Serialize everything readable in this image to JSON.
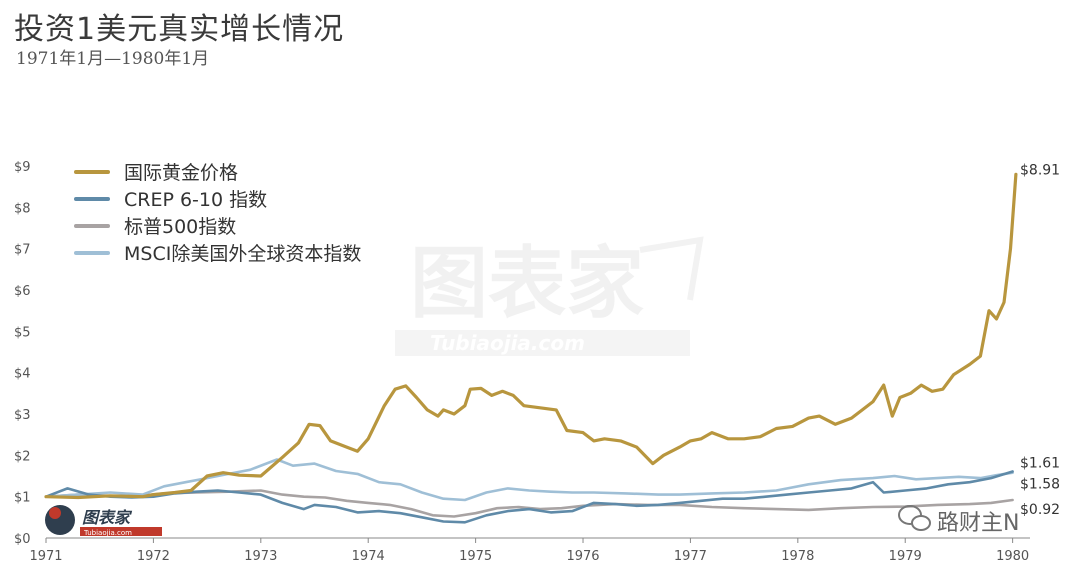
{
  "header": {
    "title": "投资1美元真实增长情况",
    "subtitle": "1971年1月—1980年1月"
  },
  "watermark": {
    "main_text": "图表家",
    "sub_text": "Tubiaojia.com",
    "logo_text": "图表家",
    "logo_sub": "Tubiaojia.com",
    "wechat_text": "路财主N",
    "wechat_icon": "wechat-icon"
  },
  "chart_data": {
    "type": "line",
    "title": "投资1美元真实增长情况",
    "subtitle": "1971年1月—1980年1月",
    "x_ticks": [
      "1971",
      "1972",
      "1973",
      "1974",
      "1975",
      "1976",
      "1977",
      "1978",
      "1979",
      "1980"
    ],
    "y_ticks": [
      "$0",
      "$1",
      "$2",
      "$3",
      "$4",
      "$5",
      "$6",
      "$7",
      "$8",
      "$9"
    ],
    "xlim": [
      1971.0,
      1980.05
    ],
    "ylim": [
      0,
      9
    ],
    "grid": false,
    "legend_position": "top-left",
    "series": [
      {
        "name": "国际黄金价格",
        "color": "#b8963e",
        "end_label": "$8.91",
        "points": [
          [
            1971.0,
            1.0
          ],
          [
            1971.3,
            0.98
          ],
          [
            1971.6,
            1.02
          ],
          [
            1971.9,
            1.0
          ],
          [
            1972.0,
            1.05
          ],
          [
            1972.2,
            1.1
          ],
          [
            1972.35,
            1.15
          ],
          [
            1972.5,
            1.5
          ],
          [
            1972.65,
            1.58
          ],
          [
            1972.8,
            1.52
          ],
          [
            1973.0,
            1.5
          ],
          [
            1973.2,
            1.95
          ],
          [
            1973.35,
            2.3
          ],
          [
            1973.45,
            2.75
          ],
          [
            1973.55,
            2.72
          ],
          [
            1973.65,
            2.35
          ],
          [
            1973.8,
            2.2
          ],
          [
            1973.9,
            2.1
          ],
          [
            1974.0,
            2.4
          ],
          [
            1974.15,
            3.2
          ],
          [
            1974.25,
            3.6
          ],
          [
            1974.35,
            3.68
          ],
          [
            1974.45,
            3.4
          ],
          [
            1974.55,
            3.1
          ],
          [
            1974.65,
            2.95
          ],
          [
            1974.7,
            3.1
          ],
          [
            1974.8,
            3.0
          ],
          [
            1974.9,
            3.2
          ],
          [
            1974.95,
            3.6
          ],
          [
            1975.05,
            3.62
          ],
          [
            1975.15,
            3.45
          ],
          [
            1975.25,
            3.55
          ],
          [
            1975.35,
            3.45
          ],
          [
            1975.45,
            3.2
          ],
          [
            1975.6,
            3.15
          ],
          [
            1975.75,
            3.1
          ],
          [
            1975.85,
            2.6
          ],
          [
            1976.0,
            2.55
          ],
          [
            1976.1,
            2.35
          ],
          [
            1976.2,
            2.4
          ],
          [
            1976.35,
            2.35
          ],
          [
            1976.5,
            2.2
          ],
          [
            1976.65,
            1.8
          ],
          [
            1976.75,
            2.0
          ],
          [
            1976.9,
            2.2
          ],
          [
            1977.0,
            2.35
          ],
          [
            1977.1,
            2.4
          ],
          [
            1977.2,
            2.55
          ],
          [
            1977.35,
            2.4
          ],
          [
            1977.5,
            2.4
          ],
          [
            1977.65,
            2.45
          ],
          [
            1977.8,
            2.65
          ],
          [
            1977.95,
            2.7
          ],
          [
            1978.1,
            2.9
          ],
          [
            1978.2,
            2.95
          ],
          [
            1978.35,
            2.75
          ],
          [
            1978.5,
            2.9
          ],
          [
            1978.6,
            3.1
          ],
          [
            1978.7,
            3.3
          ],
          [
            1978.8,
            3.7
          ],
          [
            1978.88,
            2.95
          ],
          [
            1978.95,
            3.4
          ],
          [
            1979.05,
            3.5
          ],
          [
            1979.15,
            3.7
          ],
          [
            1979.25,
            3.55
          ],
          [
            1979.35,
            3.6
          ],
          [
            1979.45,
            3.95
          ],
          [
            1979.6,
            4.2
          ],
          [
            1979.7,
            4.4
          ],
          [
            1979.78,
            5.5
          ],
          [
            1979.85,
            5.3
          ],
          [
            1979.92,
            5.7
          ],
          [
            1979.98,
            7.0
          ],
          [
            1980.03,
            8.8
          ]
        ]
      },
      {
        "name": "CREP 6-10 指数",
        "color": "#5f8aa8",
        "end_label": "$1.61",
        "points": [
          [
            1971.0,
            1.0
          ],
          [
            1971.2,
            1.2
          ],
          [
            1971.4,
            1.05
          ],
          [
            1971.6,
            1.0
          ],
          [
            1971.8,
            0.98
          ],
          [
            1972.0,
            1.0
          ],
          [
            1972.2,
            1.08
          ],
          [
            1972.4,
            1.12
          ],
          [
            1972.6,
            1.15
          ],
          [
            1972.8,
            1.1
          ],
          [
            1973.0,
            1.05
          ],
          [
            1973.2,
            0.85
          ],
          [
            1973.4,
            0.7
          ],
          [
            1973.5,
            0.8
          ],
          [
            1973.7,
            0.75
          ],
          [
            1973.9,
            0.62
          ],
          [
            1974.1,
            0.65
          ],
          [
            1974.3,
            0.6
          ],
          [
            1974.5,
            0.5
          ],
          [
            1974.7,
            0.4
          ],
          [
            1974.9,
            0.38
          ],
          [
            1975.1,
            0.55
          ],
          [
            1975.3,
            0.65
          ],
          [
            1975.5,
            0.7
          ],
          [
            1975.7,
            0.62
          ],
          [
            1975.9,
            0.65
          ],
          [
            1976.1,
            0.85
          ],
          [
            1976.3,
            0.82
          ],
          [
            1976.5,
            0.78
          ],
          [
            1976.7,
            0.8
          ],
          [
            1976.9,
            0.85
          ],
          [
            1977.1,
            0.9
          ],
          [
            1977.3,
            0.95
          ],
          [
            1977.5,
            0.95
          ],
          [
            1977.7,
            1.0
          ],
          [
            1977.9,
            1.05
          ],
          [
            1978.1,
            1.1
          ],
          [
            1978.3,
            1.15
          ],
          [
            1978.5,
            1.2
          ],
          [
            1978.7,
            1.35
          ],
          [
            1978.8,
            1.1
          ],
          [
            1979.0,
            1.15
          ],
          [
            1979.2,
            1.2
          ],
          [
            1979.4,
            1.3
          ],
          [
            1979.6,
            1.35
          ],
          [
            1979.8,
            1.45
          ],
          [
            1980.0,
            1.61
          ]
        ]
      },
      {
        "name": "标普500指数",
        "color": "#a8a3a3",
        "end_label": "$0.92",
        "points": [
          [
            1971.0,
            1.0
          ],
          [
            1971.3,
            1.05
          ],
          [
            1971.6,
            1.02
          ],
          [
            1971.9,
            1.03
          ],
          [
            1972.1,
            1.08
          ],
          [
            1972.4,
            1.1
          ],
          [
            1972.7,
            1.12
          ],
          [
            1973.0,
            1.15
          ],
          [
            1973.2,
            1.05
          ],
          [
            1973.4,
            1.0
          ],
          [
            1973.6,
            0.98
          ],
          [
            1973.8,
            0.9
          ],
          [
            1974.0,
            0.85
          ],
          [
            1974.2,
            0.8
          ],
          [
            1974.4,
            0.7
          ],
          [
            1974.6,
            0.55
          ],
          [
            1974.8,
            0.52
          ],
          [
            1975.0,
            0.6
          ],
          [
            1975.2,
            0.72
          ],
          [
            1975.4,
            0.75
          ],
          [
            1975.6,
            0.7
          ],
          [
            1975.8,
            0.72
          ],
          [
            1976.0,
            0.78
          ],
          [
            1976.3,
            0.82
          ],
          [
            1976.6,
            0.8
          ],
          [
            1976.9,
            0.8
          ],
          [
            1977.2,
            0.75
          ],
          [
            1977.5,
            0.72
          ],
          [
            1977.8,
            0.7
          ],
          [
            1978.1,
            0.68
          ],
          [
            1978.4,
            0.72
          ],
          [
            1978.7,
            0.75
          ],
          [
            1979.0,
            0.76
          ],
          [
            1979.3,
            0.8
          ],
          [
            1979.6,
            0.82
          ],
          [
            1979.8,
            0.85
          ],
          [
            1980.0,
            0.92
          ]
        ]
      },
      {
        "name": "MSCI除美国外全球资本指数",
        "color": "#9fbfd6",
        "end_label": "$1.58",
        "points": [
          [
            1971.0,
            1.0
          ],
          [
            1971.3,
            1.05
          ],
          [
            1971.6,
            1.1
          ],
          [
            1971.9,
            1.05
          ],
          [
            1972.1,
            1.25
          ],
          [
            1972.3,
            1.35
          ],
          [
            1972.5,
            1.45
          ],
          [
            1972.7,
            1.55
          ],
          [
            1972.9,
            1.65
          ],
          [
            1973.05,
            1.8
          ],
          [
            1973.15,
            1.9
          ],
          [
            1973.3,
            1.75
          ],
          [
            1973.5,
            1.8
          ],
          [
            1973.7,
            1.62
          ],
          [
            1973.9,
            1.55
          ],
          [
            1974.1,
            1.35
          ],
          [
            1974.3,
            1.3
          ],
          [
            1974.5,
            1.1
          ],
          [
            1974.7,
            0.95
          ],
          [
            1974.9,
            0.92
          ],
          [
            1975.1,
            1.1
          ],
          [
            1975.3,
            1.2
          ],
          [
            1975.5,
            1.15
          ],
          [
            1975.7,
            1.12
          ],
          [
            1975.9,
            1.1
          ],
          [
            1976.1,
            1.1
          ],
          [
            1976.4,
            1.08
          ],
          [
            1976.7,
            1.05
          ],
          [
            1976.9,
            1.05
          ],
          [
            1977.2,
            1.08
          ],
          [
            1977.5,
            1.1
          ],
          [
            1977.8,
            1.15
          ],
          [
            1978.1,
            1.3
          ],
          [
            1978.4,
            1.4
          ],
          [
            1978.7,
            1.45
          ],
          [
            1978.9,
            1.5
          ],
          [
            1979.1,
            1.42
          ],
          [
            1979.3,
            1.45
          ],
          [
            1979.5,
            1.48
          ],
          [
            1979.7,
            1.45
          ],
          [
            1979.85,
            1.52
          ],
          [
            1980.0,
            1.58
          ]
        ]
      }
    ]
  }
}
